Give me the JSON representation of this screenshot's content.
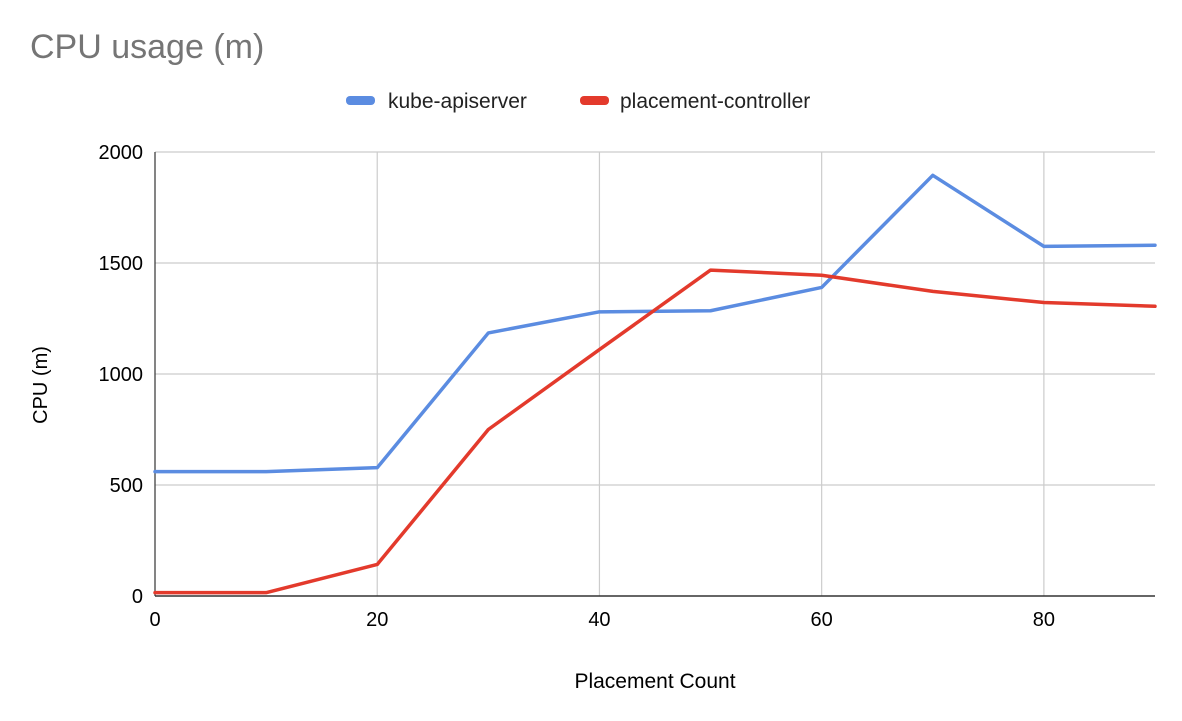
{
  "chart_data": {
    "type": "line",
    "title": "CPU usage (m)",
    "xlabel": "Placement Count",
    "ylabel": "CPU (m)",
    "x": [
      0,
      10,
      20,
      30,
      40,
      50,
      60,
      70,
      80,
      90
    ],
    "xlim": [
      0,
      90
    ],
    "ylim": [
      0,
      2000
    ],
    "x_ticks": [
      0,
      20,
      40,
      60,
      80
    ],
    "y_ticks": [
      0,
      500,
      1000,
      1500,
      2000
    ],
    "grid": true,
    "legend_position": "top-center",
    "series": [
      {
        "name": "kube-apiserver",
        "color": "#5b8ce1",
        "values": [
          560,
          560,
          578,
          1185,
          1280,
          1285,
          1390,
          1895,
          1575,
          1580
        ]
      },
      {
        "name": "placement-controller",
        "color": "#e33a2c",
        "values": [
          15,
          15,
          142,
          750,
          1110,
          1468,
          1445,
          1372,
          1322,
          1305
        ]
      }
    ]
  }
}
